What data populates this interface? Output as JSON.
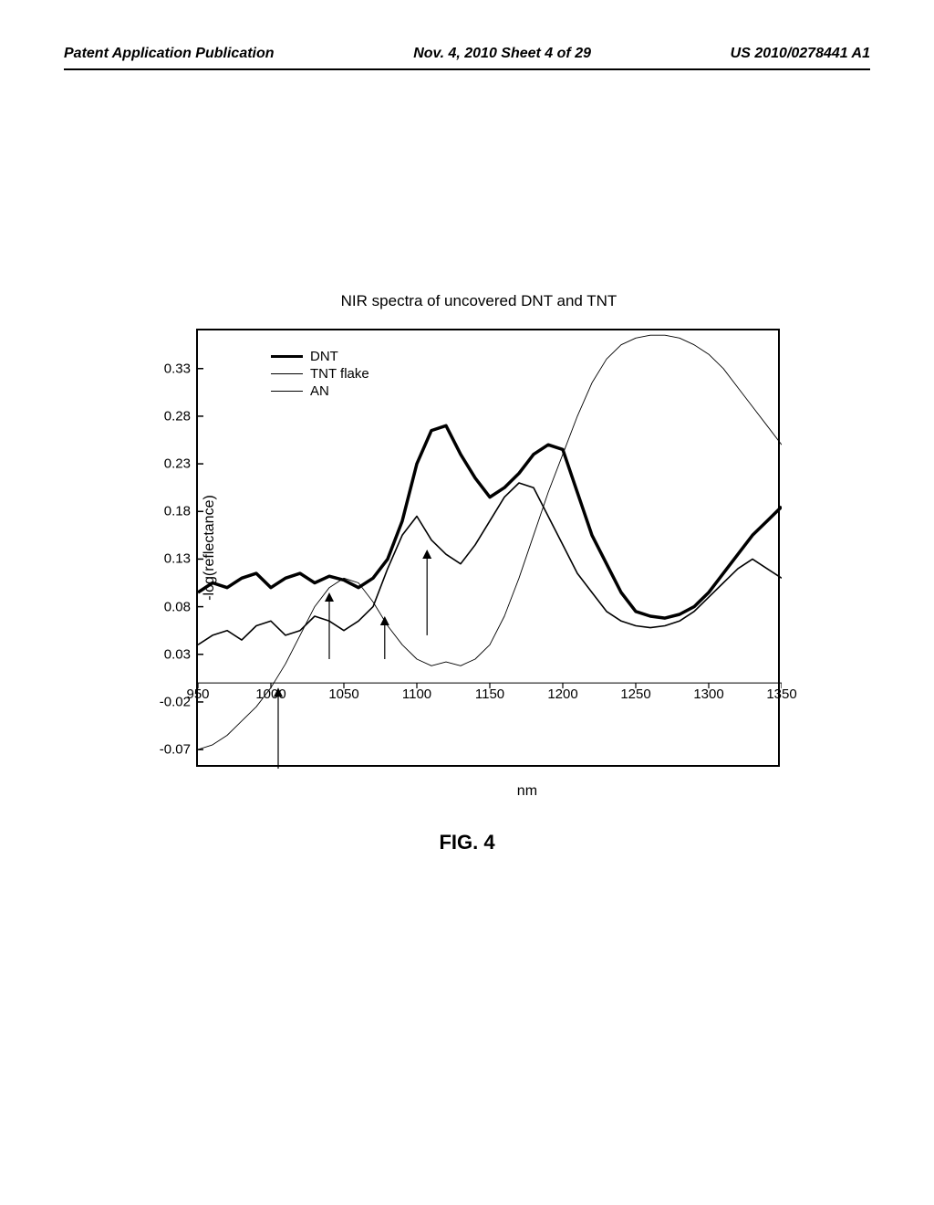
{
  "header": {
    "left": "Patent Application Publication",
    "center": "Nov. 4, 2010  Sheet 4 of 29",
    "right": "US 2010/0278441 A1"
  },
  "figure": {
    "label": "FIG. 4",
    "chart": {
      "type": "line",
      "title": "NIR spectra of uncovered DNT and TNT",
      "xlabel": "nm",
      "ylabel": "-log(reflectance)",
      "xlim": [
        950,
        1350
      ],
      "ylim": [
        -0.09,
        0.37
      ],
      "xticks": [
        950,
        1000,
        1050,
        1100,
        1150,
        1200,
        1250,
        1300,
        1350
      ],
      "yticks": [
        -0.07,
        -0.02,
        0.03,
        0.08,
        0.13,
        0.18,
        0.23,
        0.28,
        0.33
      ],
      "background_color": "#ffffff",
      "axis_color": "#000000",
      "legend": {
        "position": "upper-left",
        "items": [
          {
            "label": "DNT",
            "color": "#000000",
            "stroke_width": 3.5
          },
          {
            "label": "TNT flake",
            "color": "#000000",
            "stroke_width": 1.6
          },
          {
            "label": "AN",
            "color": "#000000",
            "stroke_width": 0.9
          }
        ]
      },
      "series": [
        {
          "name": "DNT",
          "color": "#000000",
          "stroke_width": 3.5,
          "x": [
            950,
            960,
            970,
            980,
            990,
            1000,
            1010,
            1020,
            1030,
            1040,
            1050,
            1060,
            1070,
            1080,
            1090,
            1100,
            1110,
            1120,
            1130,
            1140,
            1150,
            1160,
            1170,
            1180,
            1190,
            1200,
            1210,
            1220,
            1230,
            1240,
            1250,
            1260,
            1270,
            1280,
            1290,
            1300,
            1310,
            1320,
            1330,
            1340,
            1350
          ],
          "y": [
            0.095,
            0.105,
            0.1,
            0.11,
            0.115,
            0.1,
            0.11,
            0.115,
            0.105,
            0.112,
            0.108,
            0.1,
            0.11,
            0.13,
            0.17,
            0.23,
            0.265,
            0.27,
            0.24,
            0.215,
            0.195,
            0.205,
            0.22,
            0.24,
            0.25,
            0.245,
            0.2,
            0.155,
            0.125,
            0.095,
            0.075,
            0.07,
            0.068,
            0.072,
            0.08,
            0.095,
            0.115,
            0.135,
            0.155,
            0.17,
            0.185
          ]
        },
        {
          "name": "TNT flake",
          "color": "#000000",
          "stroke_width": 1.6,
          "x": [
            950,
            960,
            970,
            980,
            990,
            1000,
            1010,
            1020,
            1030,
            1040,
            1050,
            1060,
            1070,
            1080,
            1090,
            1100,
            1110,
            1120,
            1130,
            1140,
            1150,
            1160,
            1170,
            1180,
            1190,
            1200,
            1210,
            1220,
            1230,
            1240,
            1250,
            1260,
            1270,
            1280,
            1290,
            1300,
            1310,
            1320,
            1330,
            1340,
            1350
          ],
          "y": [
            0.04,
            0.05,
            0.055,
            0.045,
            0.06,
            0.065,
            0.05,
            0.055,
            0.07,
            0.065,
            0.055,
            0.065,
            0.08,
            0.12,
            0.155,
            0.175,
            0.15,
            0.135,
            0.125,
            0.145,
            0.17,
            0.195,
            0.21,
            0.205,
            0.175,
            0.145,
            0.115,
            0.095,
            0.075,
            0.065,
            0.06,
            0.058,
            0.06,
            0.065,
            0.075,
            0.09,
            0.105,
            0.12,
            0.13,
            0.12,
            0.11
          ]
        },
        {
          "name": "AN",
          "color": "#000000",
          "stroke_width": 0.9,
          "x": [
            950,
            960,
            970,
            980,
            990,
            1000,
            1010,
            1020,
            1030,
            1040,
            1050,
            1060,
            1070,
            1080,
            1090,
            1100,
            1110,
            1120,
            1130,
            1140,
            1150,
            1160,
            1170,
            1180,
            1190,
            1200,
            1210,
            1220,
            1230,
            1240,
            1250,
            1260,
            1270,
            1280,
            1290,
            1300,
            1310,
            1320,
            1330,
            1340,
            1350
          ],
          "y": [
            -0.07,
            -0.065,
            -0.055,
            -0.04,
            -0.025,
            -0.005,
            0.02,
            0.05,
            0.08,
            0.1,
            0.11,
            0.105,
            0.085,
            0.06,
            0.04,
            0.025,
            0.018,
            0.022,
            0.018,
            0.025,
            0.04,
            0.07,
            0.11,
            0.155,
            0.2,
            0.24,
            0.28,
            0.315,
            0.34,
            0.355,
            0.362,
            0.365,
            0.365,
            0.362,
            0.355,
            0.345,
            0.33,
            0.31,
            0.29,
            0.27,
            0.25
          ]
        }
      ],
      "arrows": [
        {
          "x": 1005,
          "y_from": -0.09,
          "y_to": -0.005,
          "stroke_width": 1.2
        },
        {
          "x": 1040,
          "y_from": 0.025,
          "y_to": 0.095,
          "stroke_width": 1.2
        },
        {
          "x": 1078,
          "y_from": 0.025,
          "y_to": 0.07,
          "stroke_width": 1.2
        },
        {
          "x": 1107,
          "y_from": 0.05,
          "y_to": 0.14,
          "stroke_width": 1.2
        }
      ]
    }
  }
}
